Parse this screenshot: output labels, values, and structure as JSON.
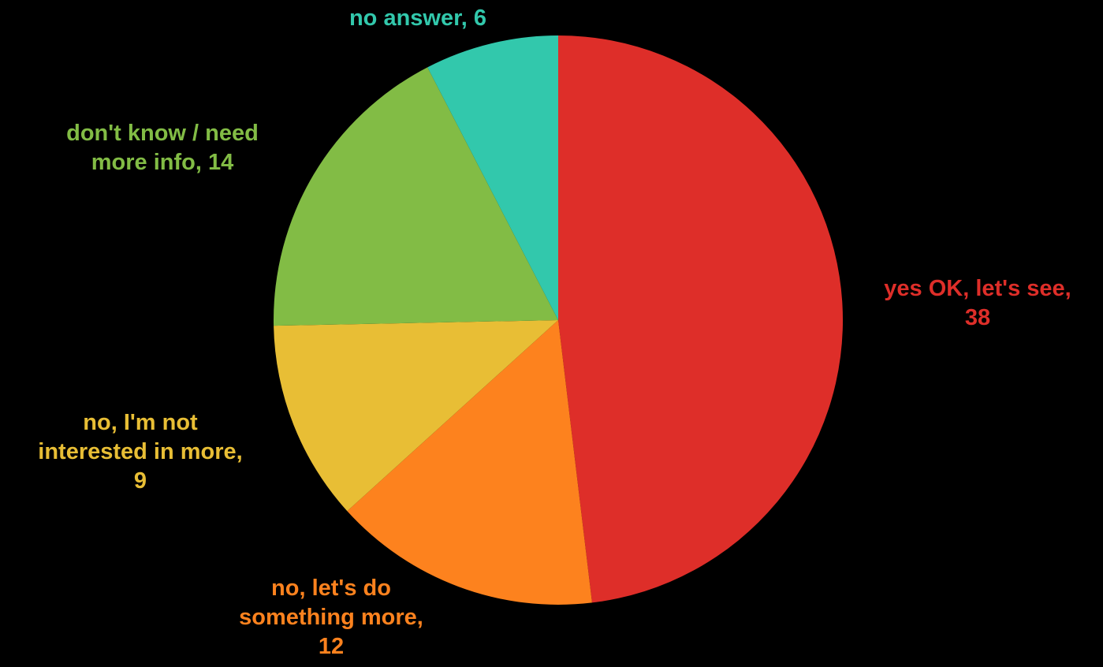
{
  "chart_data": {
    "type": "pie",
    "title": "",
    "start": "12 o'clock",
    "direction": "clockwise",
    "legend": "none",
    "slices": [
      {
        "label": "yes OK, let's see",
        "value": 38,
        "color": "#de2e29",
        "label_lines": [
          "yes OK, let's see,",
          "38"
        ]
      },
      {
        "label": "no, let's do something more",
        "value": 12,
        "color": "#fd821e",
        "label_lines": [
          "no, let's do",
          "something more,",
          "12"
        ]
      },
      {
        "label": "no, I'm not interested in more",
        "value": 9,
        "color": "#e8be35",
        "label_lines": [
          "no, I'm not",
          "interested in more,",
          "9"
        ]
      },
      {
        "label": "don't know / need more info",
        "value": 14,
        "color": "#82bc45",
        "label_lines": [
          "don't know / need",
          "more info, 14"
        ]
      },
      {
        "label": "no answer",
        "value": 6,
        "color": "#32c8ac",
        "label_lines": [
          "no answer, 6"
        ]
      }
    ]
  }
}
